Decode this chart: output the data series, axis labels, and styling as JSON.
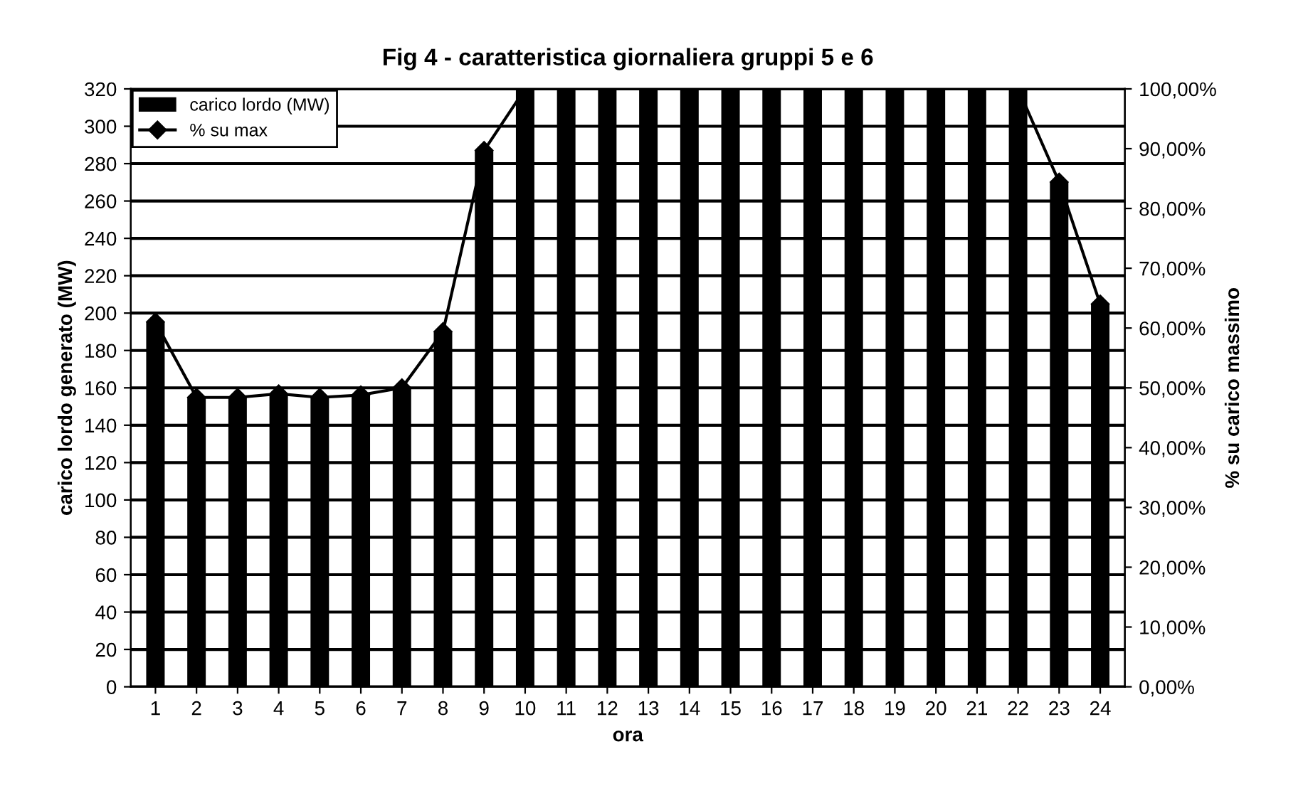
{
  "chart_data": {
    "type": "bar",
    "title": "Fig 4 - caratteristica giornaliera gruppi 5 e 6",
    "xlabel": "ora",
    "ylabel": "carico lordo generato (MW)",
    "y2label": "% su carico massimo",
    "categories": [
      "1",
      "2",
      "3",
      "4",
      "5",
      "6",
      "7",
      "8",
      "9",
      "10",
      "11",
      "12",
      "13",
      "14",
      "15",
      "16",
      "17",
      "18",
      "19",
      "20",
      "21",
      "22",
      "23",
      "24"
    ],
    "series": [
      {
        "name": "carico lordo (MW)",
        "color": "#000000",
        "values": [
          195,
          155,
          155,
          157,
          155,
          156,
          160,
          190,
          287,
          320,
          320,
          320,
          320,
          320,
          320,
          320,
          320,
          320,
          320,
          320,
          320,
          320,
          270,
          205
        ]
      },
      {
        "name": "% su max",
        "type": "line",
        "axis": "y2",
        "color": "#000000",
        "marker": "diamond",
        "values": [
          61,
          48.4,
          48.4,
          49,
          48.4,
          48.8,
          50,
          59.4,
          89.7,
          100,
          100,
          100,
          100,
          100,
          100,
          100,
          100,
          100,
          100,
          100,
          100,
          100,
          84.4,
          64
        ]
      }
    ],
    "ylim": [
      0,
      320
    ],
    "yticks": [
      0,
      20,
      40,
      60,
      80,
      100,
      120,
      140,
      160,
      180,
      200,
      220,
      240,
      260,
      280,
      300,
      320
    ],
    "y2lim": [
      0,
      100
    ],
    "y2ticks": [
      {
        "value": 0,
        "label": "0,00%"
      },
      {
        "value": 10,
        "label": "10,00%"
      },
      {
        "value": 20,
        "label": "20,00%"
      },
      {
        "value": 30,
        "label": "30,00%"
      },
      {
        "value": 40,
        "label": "40,00%"
      },
      {
        "value": 50,
        "label": "50,00%"
      },
      {
        "value": 60,
        "label": "60,00%"
      },
      {
        "value": 70,
        "label": "70,00%"
      },
      {
        "value": 80,
        "label": "80,00%"
      },
      {
        "value": 90,
        "label": "90,00%"
      },
      {
        "value": 100,
        "label": "100,00%"
      }
    ],
    "grid": "y",
    "legend": "top left"
  }
}
